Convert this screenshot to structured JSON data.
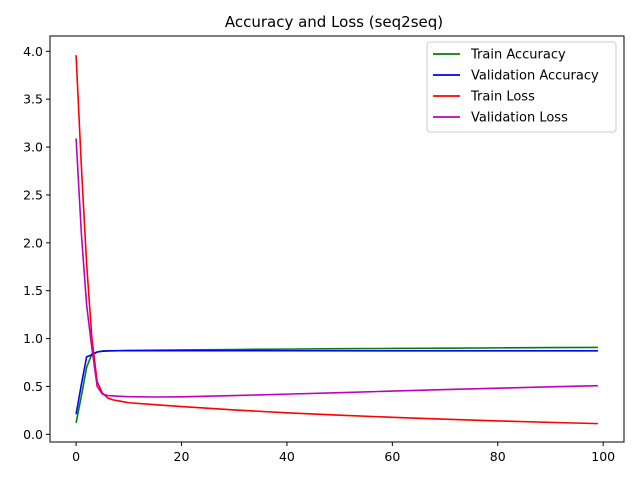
{
  "chart_data": {
    "type": "line",
    "title": "Accuracy and Loss (seq2seq)",
    "xlabel": "",
    "ylabel": "",
    "xlim": [
      -4.95,
      103.95
    ],
    "ylim": [
      -0.08,
      4.16
    ],
    "xticks": [
      0,
      20,
      40,
      60,
      80,
      100
    ],
    "xtick_labels": [
      "0",
      "20",
      "40",
      "60",
      "80",
      "100"
    ],
    "yticks": [
      0.0,
      0.5,
      1.0,
      1.5,
      2.0,
      2.5,
      3.0,
      3.5,
      4.0
    ],
    "ytick_labels": [
      "0.0",
      "0.5",
      "1.0",
      "1.5",
      "2.0",
      "2.5",
      "3.0",
      "3.5",
      "4.0"
    ],
    "grid": false,
    "legend_position": "top-right",
    "series": [
      {
        "name": "Train Accuracy",
        "color": "#008000",
        "x": [
          0,
          1,
          2,
          3,
          4,
          5,
          6,
          8,
          10,
          15,
          20,
          30,
          40,
          50,
          60,
          70,
          80,
          90,
          99
        ],
        "y": [
          0.12,
          0.4,
          0.7,
          0.84,
          0.86,
          0.87,
          0.872,
          0.874,
          0.876,
          0.879,
          0.882,
          0.886,
          0.89,
          0.894,
          0.897,
          0.9,
          0.903,
          0.906,
          0.908
        ]
      },
      {
        "name": "Validation Accuracy",
        "color": "#0000ff",
        "x": [
          0,
          1,
          2,
          3,
          4,
          5,
          6,
          8,
          10,
          20,
          40,
          60,
          80,
          99
        ],
        "y": [
          0.21,
          0.52,
          0.81,
          0.83,
          0.86,
          0.868,
          0.871,
          0.873,
          0.874,
          0.874,
          0.873,
          0.872,
          0.872,
          0.872
        ]
      },
      {
        "name": "Train Loss",
        "color": "#ff0000",
        "x": [
          0,
          1,
          2,
          3,
          4,
          5,
          6,
          7,
          8,
          10,
          15,
          20,
          30,
          40,
          50,
          60,
          70,
          80,
          90,
          99
        ],
        "y": [
          3.96,
          2.8,
          1.78,
          1.0,
          0.55,
          0.43,
          0.38,
          0.36,
          0.35,
          0.33,
          0.31,
          0.29,
          0.255,
          0.225,
          0.2,
          0.178,
          0.158,
          0.14,
          0.125,
          0.112
        ]
      },
      {
        "name": "Validation Loss",
        "color": "#bf00bf",
        "x": [
          0,
          1,
          2,
          3,
          4,
          5,
          6,
          8,
          10,
          15,
          20,
          30,
          40,
          50,
          60,
          70,
          80,
          90,
          99
        ],
        "y": [
          3.09,
          2.1,
          1.35,
          0.9,
          0.5,
          0.42,
          0.405,
          0.398,
          0.393,
          0.39,
          0.392,
          0.405,
          0.42,
          0.435,
          0.452,
          0.468,
          0.482,
          0.496,
          0.508
        ]
      }
    ]
  }
}
